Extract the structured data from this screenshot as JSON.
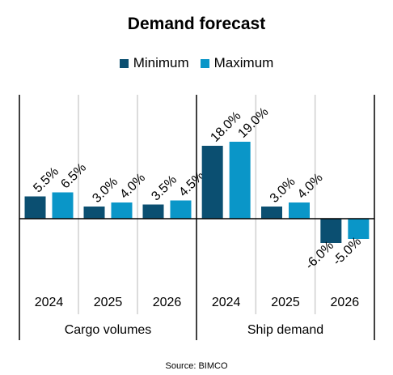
{
  "chart_data": {
    "type": "bar",
    "title": "Demand forecast",
    "groups": [
      {
        "name": "Cargo volumes",
        "categories": [
          "2024",
          "2025",
          "2026"
        ]
      },
      {
        "name": "Ship demand",
        "categories": [
          "2024",
          "2025",
          "2026"
        ]
      }
    ],
    "series": [
      {
        "name": "Minimum",
        "color": "#0b4f71",
        "values": [
          [
            5.5,
            3.0,
            3.5
          ],
          [
            18.0,
            3.0,
            -6.0
          ]
        ],
        "labels": [
          [
            "5.5%",
            "3.0%",
            "3.5%"
          ],
          [
            "18.0%",
            "3.0%",
            "-6.0%"
          ]
        ]
      },
      {
        "name": "Maximum",
        "color": "#0a96c8",
        "values": [
          [
            6.5,
            4.0,
            4.5
          ],
          [
            19.0,
            4.0,
            -5.0
          ]
        ],
        "labels": [
          [
            "6.5%",
            "4.0%",
            "4.5%"
          ],
          [
            "19.0%",
            "4.0%",
            "-5.0%"
          ]
        ]
      }
    ],
    "ylim": [
      -6,
      19
    ],
    "unit": "%",
    "legend_position": "top",
    "grid": false
  },
  "source": "Source: BIMCO"
}
